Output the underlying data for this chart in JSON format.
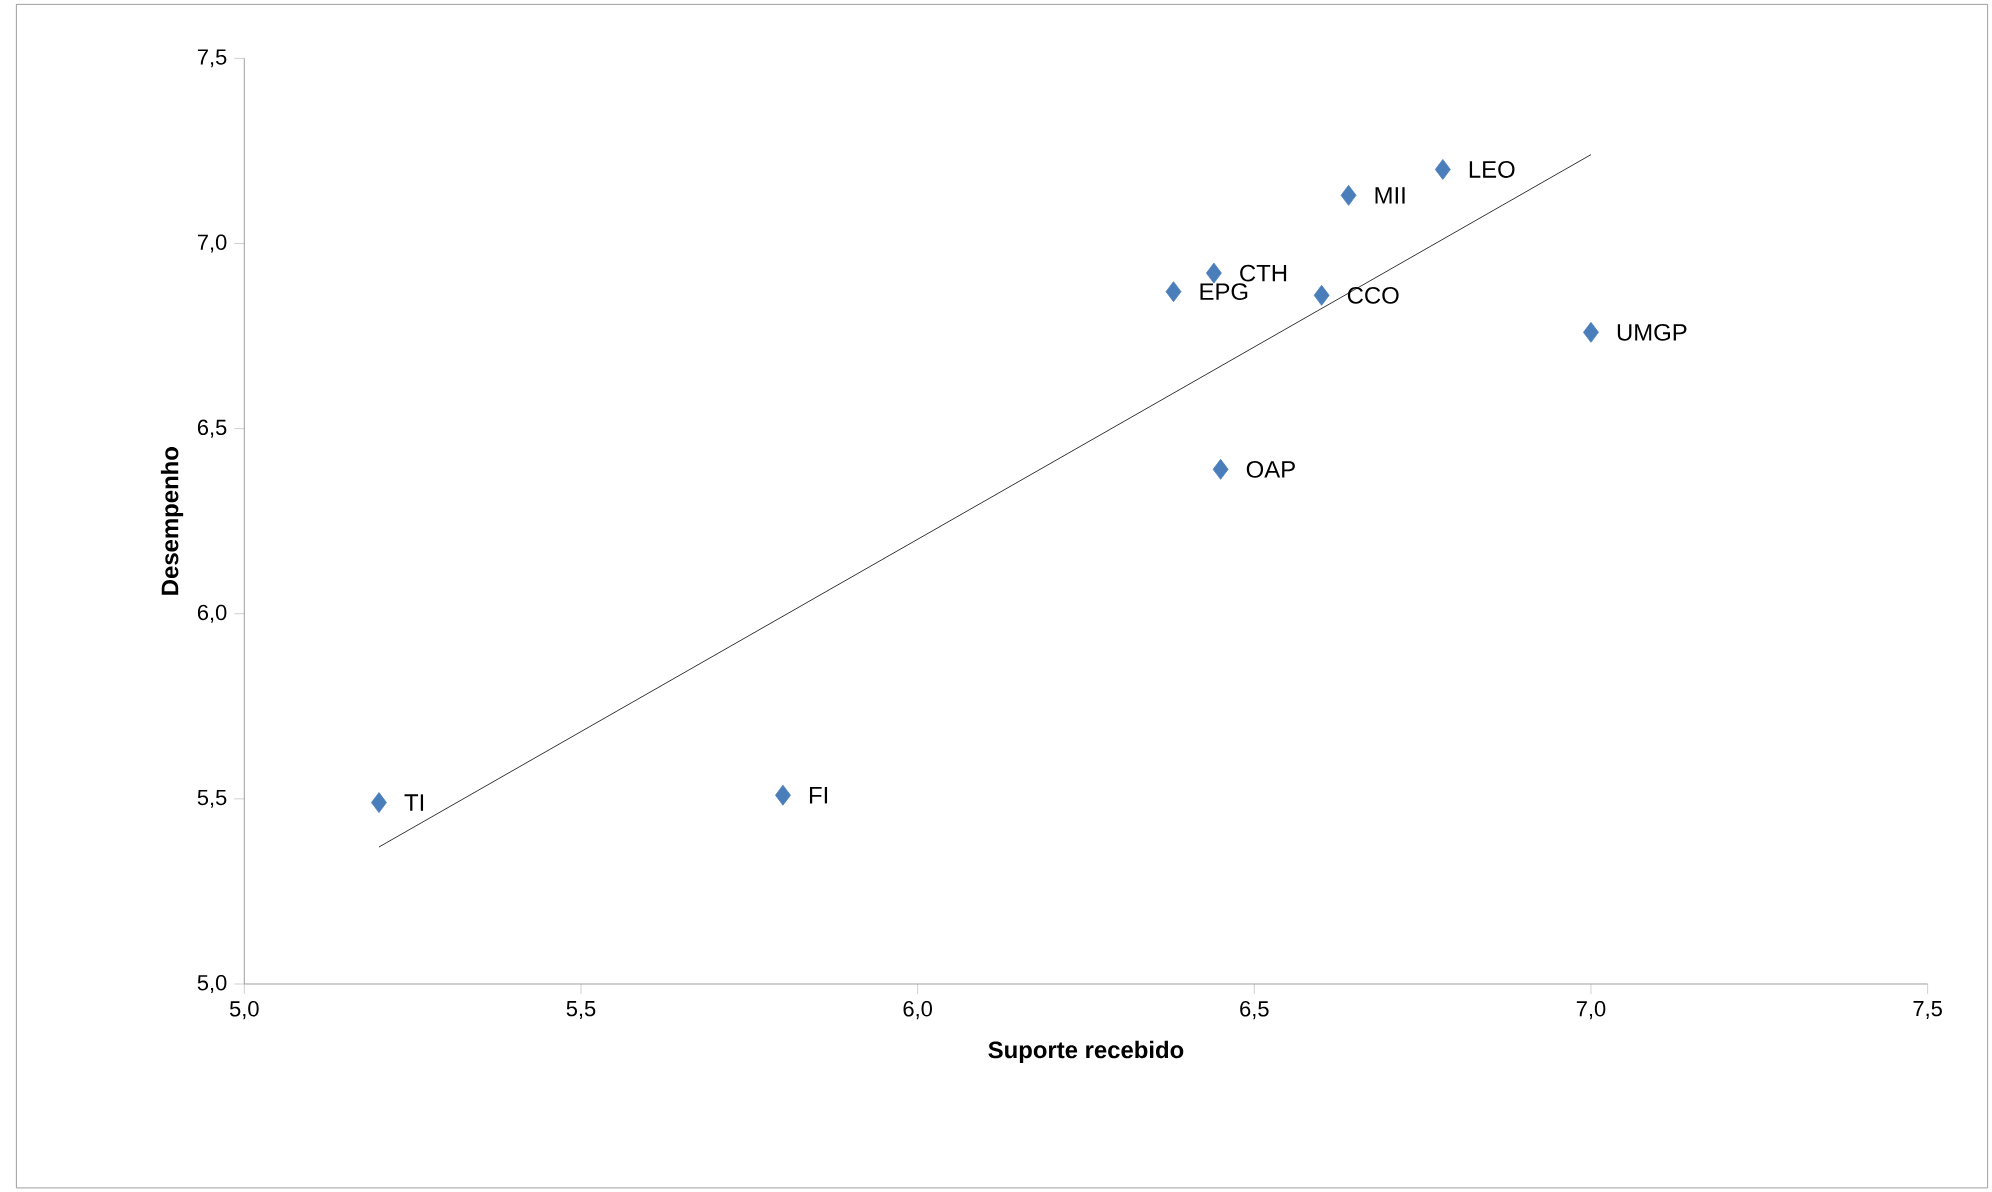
{
  "chart_data": {
    "type": "scatter",
    "xlabel": "Suporte recebido",
    "ylabel": "Desempenho",
    "marker": "diamond",
    "grid": false,
    "legend": false,
    "xlim": [
      5.0,
      7.5
    ],
    "ylim": [
      5.0,
      7.5
    ],
    "xticks": [
      {
        "value": 5.0,
        "label": "5,0"
      },
      {
        "value": 5.5,
        "label": "5,5"
      },
      {
        "value": 6.0,
        "label": "6,0"
      },
      {
        "value": 6.5,
        "label": "6,5"
      },
      {
        "value": 7.0,
        "label": "7,0"
      },
      {
        "value": 7.5,
        "label": "7,5"
      }
    ],
    "yticks": [
      {
        "value": 5.0,
        "label": "5,0"
      },
      {
        "value": 5.5,
        "label": "5,5"
      },
      {
        "value": 6.0,
        "label": "6,0"
      },
      {
        "value": 6.5,
        "label": "6,5"
      },
      {
        "value": 7.0,
        "label": "7,0"
      },
      {
        "value": 7.5,
        "label": "7,5"
      }
    ],
    "series": [
      {
        "color": "#4a7ebb",
        "x": [
          5.2,
          5.8,
          6.38,
          6.44,
          6.6,
          6.64,
          6.78,
          7.0,
          6.45
        ],
        "values": [
          5.49,
          5.51,
          6.87,
          6.92,
          6.86,
          7.13,
          7.2,
          6.76,
          6.39
        ]
      },
      {
        "type": "line",
        "color": "#000000",
        "marker": "none",
        "x": [
          5.2,
          7.0
        ],
        "values": [
          5.37,
          7.24
        ]
      }
    ],
    "annotations": [
      {
        "text": "TI",
        "x": 5.2,
        "y": 5.49
      },
      {
        "text": "FI",
        "x": 5.8,
        "y": 5.51
      },
      {
        "text": "EPG",
        "x": 6.38,
        "y": 6.87
      },
      {
        "text": "CTH",
        "x": 6.44,
        "y": 6.92
      },
      {
        "text": "CCO",
        "x": 6.6,
        "y": 6.86
      },
      {
        "text": "MII",
        "x": 6.64,
        "y": 7.13
      },
      {
        "text": "LEO",
        "x": 6.78,
        "y": 7.2
      },
      {
        "text": "UMGP",
        "x": 7.0,
        "y": 6.76
      },
      {
        "text": "OAP",
        "x": 6.45,
        "y": 6.39
      }
    ]
  }
}
